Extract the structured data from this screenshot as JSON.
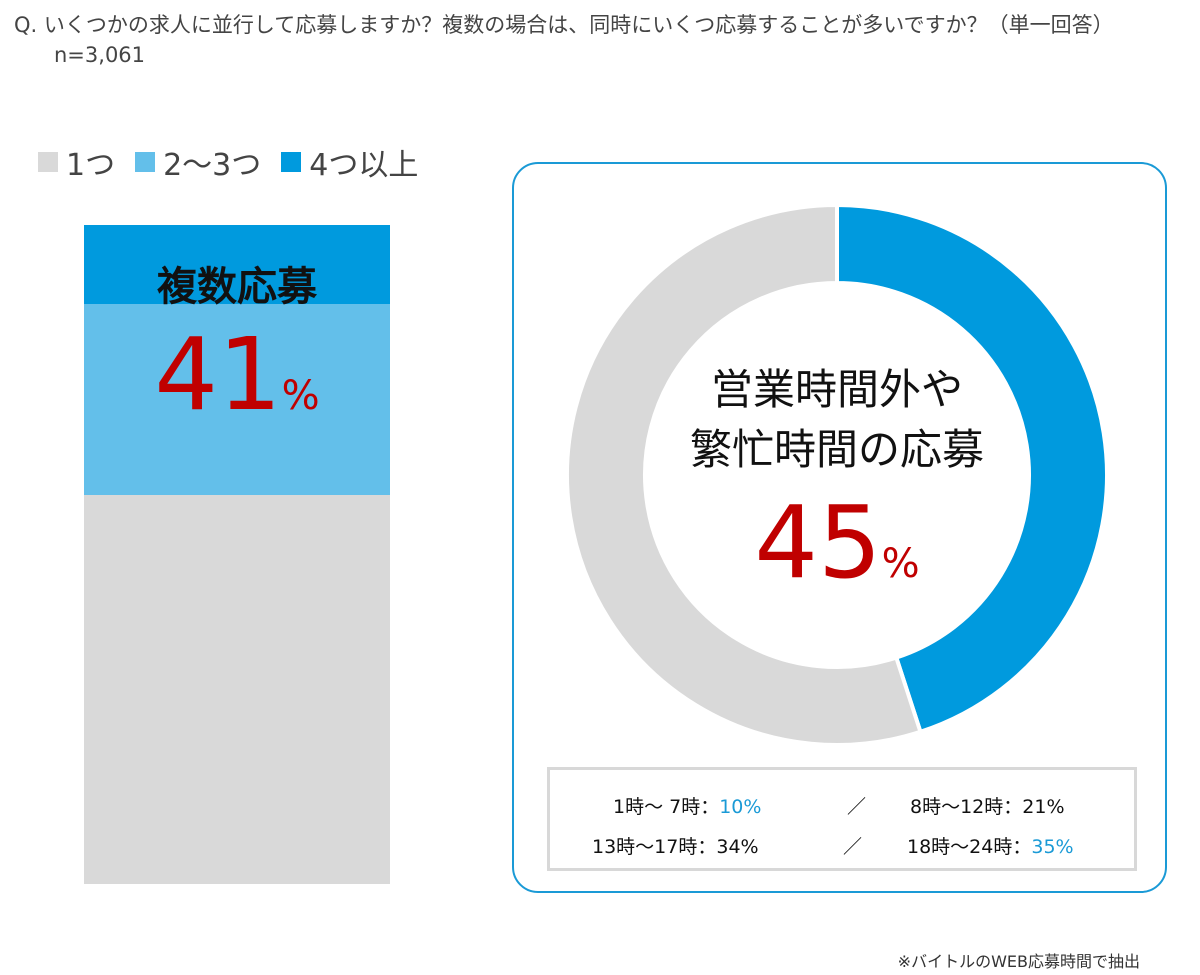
{
  "question": "Q. いくつかの求人に並行して応募しますか？複数の場合は、同時にいくつ応募することが多いですか？（単一回答）",
  "sample_size": "n=3,061",
  "chart_data": [
    {
      "type": "bar",
      "stacked": true,
      "orientation": "vertical",
      "categories": [
        ""
      ],
      "series": [
        {
          "name": "1つ",
          "values": [
            59
          ],
          "color": "#d9d9d9"
        },
        {
          "name": "2〜3つ",
          "values": [
            29
          ],
          "color": "#63bfea"
        },
        {
          "name": "4つ以上",
          "values": [
            12
          ],
          "color": "#009ade"
        }
      ],
      "legend": "top-left",
      "annotation_label": "複数応募",
      "annotation_value": "41",
      "annotation_unit": "%"
    },
    {
      "type": "pie",
      "donut": true,
      "slices": [
        {
          "label": "営業時間外や繁忙時間の応募",
          "value": 45,
          "color": "#009ade"
        },
        {
          "label": "",
          "value": 55,
          "color": "#d9d9d9"
        }
      ],
      "center_title_line1": "営業時間外や",
      "center_title_line2": "繁忙時間の応募",
      "center_value": "45",
      "center_unit": "%",
      "breakdown": [
        {
          "label": "1時〜 7時：",
          "value": "10%",
          "highlight": true
        },
        {
          "label": "8時〜12時：",
          "value": "21%",
          "highlight": false
        },
        {
          "label": "13時〜17時：",
          "value": "34%",
          "highlight": false
        },
        {
          "label": "18時〜24時：",
          "value": "35%",
          "highlight": true
        }
      ],
      "separator": "／"
    }
  ],
  "footnote": "※バイトルのWEB応募時間で抽出",
  "colors": {
    "accent": "#009ade",
    "highlight_text": "#1a9ad6",
    "value_red": "#c00000",
    "gray": "#d9d9d9"
  }
}
